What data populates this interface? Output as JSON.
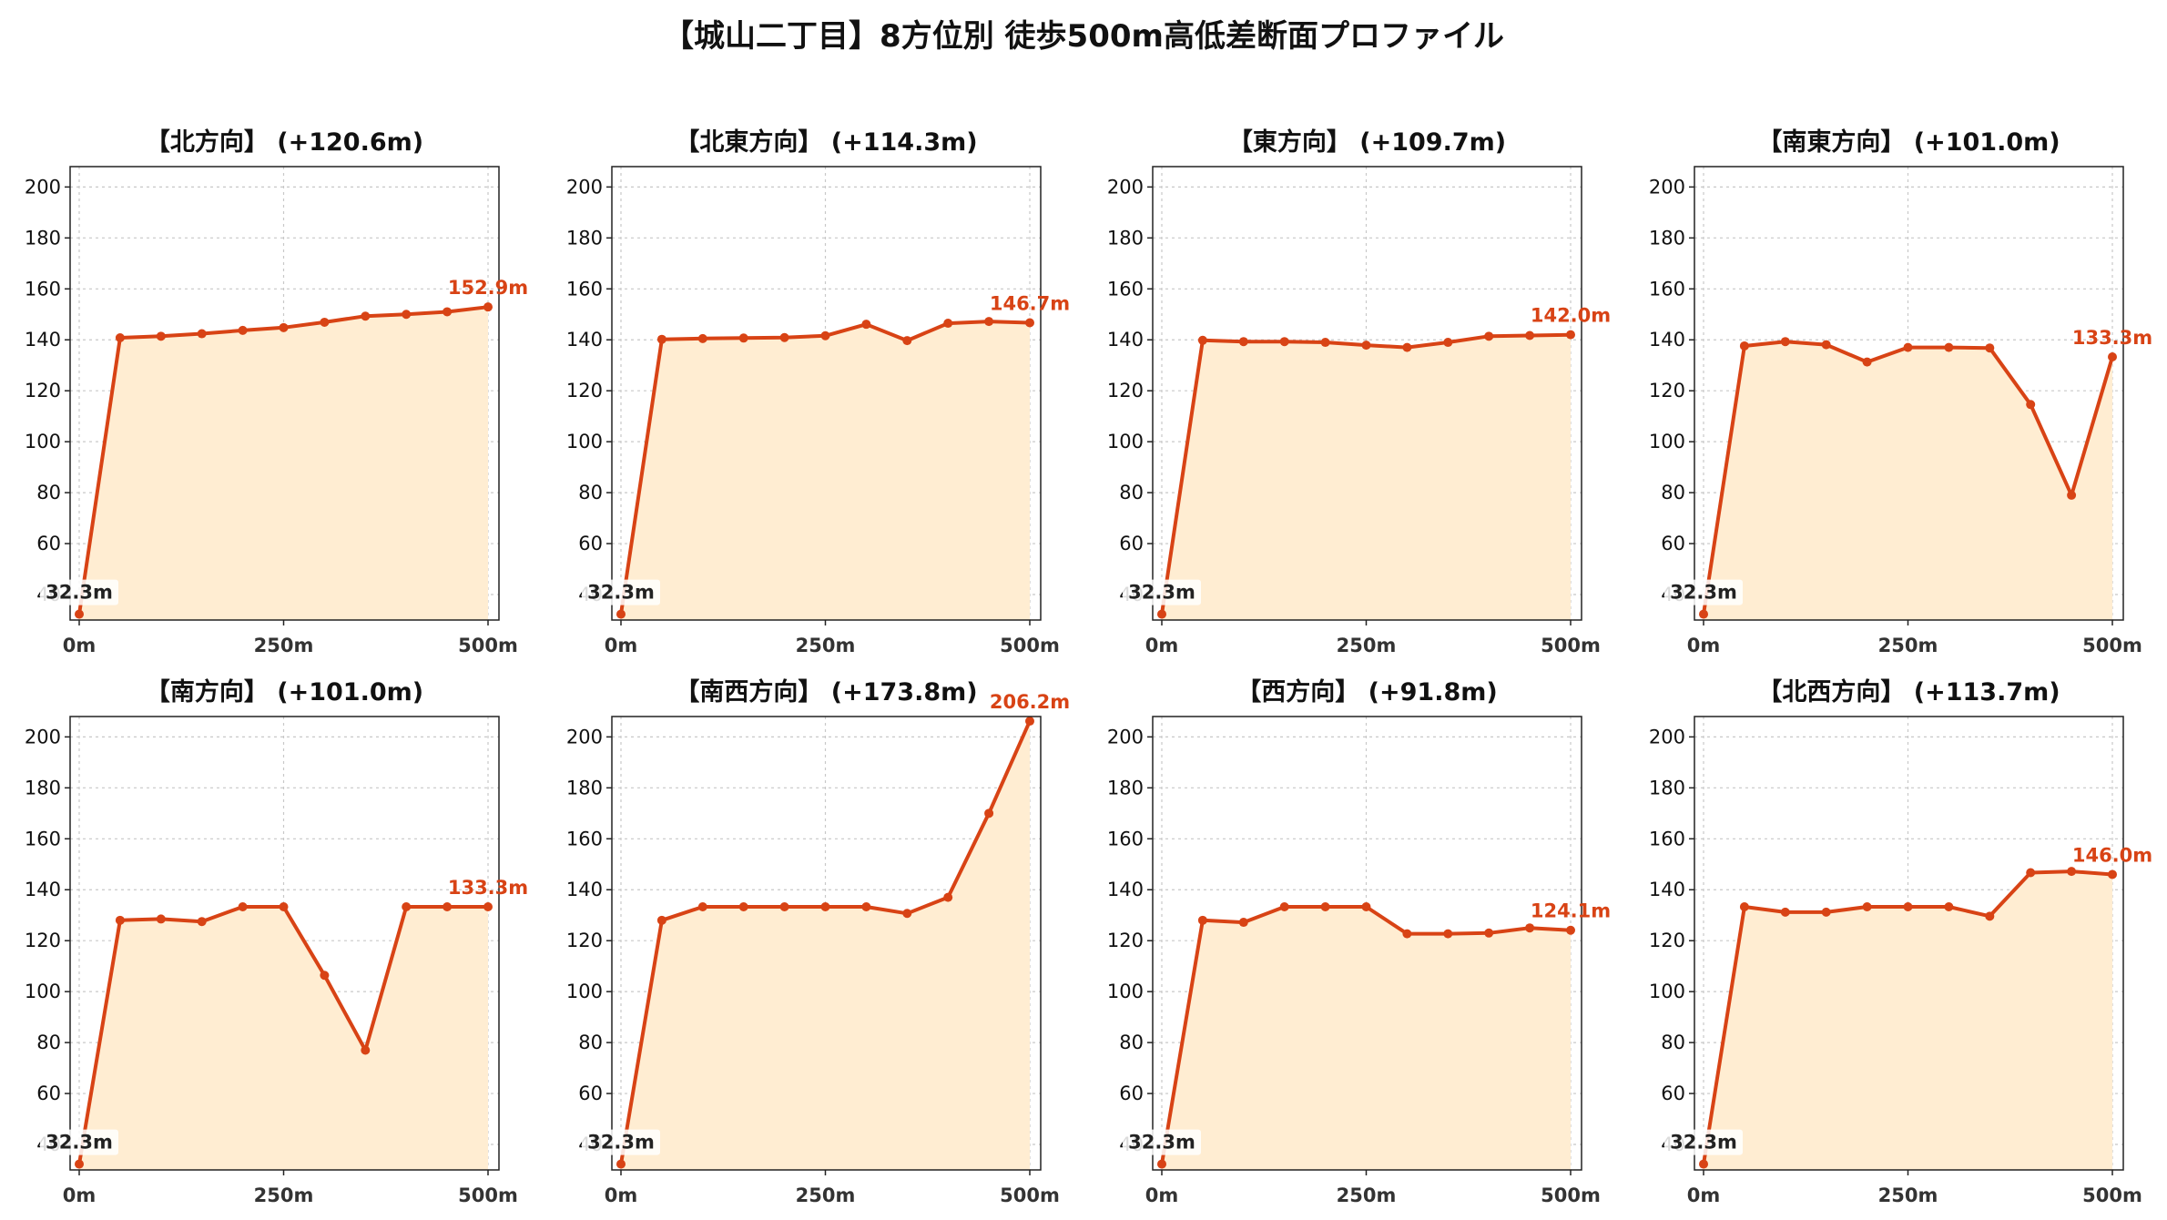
{
  "title": "【城山二丁目】8方位別 徒歩500m高低差断面プロファイル",
  "colors": {
    "line": "#d84315",
    "fill": "#ffedd2",
    "grid": "#c8c8c8"
  },
  "chart_data": [
    {
      "type": "area",
      "title": "【北方向】 (+120.6m)",
      "x": [
        0,
        50,
        100,
        150,
        200,
        250,
        300,
        350,
        400,
        450,
        500
      ],
      "values": [
        32.3,
        140.8,
        141.4,
        142.4,
        143.7,
        144.8,
        146.9,
        149.3,
        150.0,
        151.0,
        152.9
      ],
      "start_label": "32.3m",
      "end_label": "152.9m",
      "ylim": [
        30,
        208
      ],
      "yticks": [
        "40",
        "60",
        "80",
        "100",
        "120",
        "140",
        "160",
        "180",
        "200"
      ],
      "xticks": [
        "0m",
        "250m",
        "500m"
      ],
      "grid": true
    },
    {
      "type": "area",
      "title": "【北東方向】 (+114.3m)",
      "x": [
        0,
        50,
        100,
        150,
        200,
        250,
        300,
        350,
        400,
        450,
        500
      ],
      "values": [
        32.3,
        140.2,
        140.5,
        140.7,
        140.9,
        141.6,
        146.1,
        139.7,
        146.5,
        147.2,
        146.7
      ],
      "start_label": "32.3m",
      "end_label": "146.7m",
      "ylim": [
        30,
        208
      ],
      "yticks": [
        "40",
        "60",
        "80",
        "100",
        "120",
        "140",
        "160",
        "180",
        "200"
      ],
      "xticks": [
        "0m",
        "250m",
        "500m"
      ],
      "grid": true
    },
    {
      "type": "area",
      "title": "【東方向】 (+109.7m)",
      "x": [
        0,
        50,
        100,
        150,
        200,
        250,
        300,
        350,
        400,
        450,
        500
      ],
      "values": [
        32.3,
        139.8,
        139.3,
        139.3,
        139.0,
        137.9,
        137.0,
        139.0,
        141.4,
        141.7,
        142.0
      ],
      "start_label": "32.3m",
      "end_label": "142.0m",
      "ylim": [
        30,
        208
      ],
      "yticks": [
        "40",
        "60",
        "80",
        "100",
        "120",
        "140",
        "160",
        "180",
        "200"
      ],
      "xticks": [
        "0m",
        "250m",
        "500m"
      ],
      "grid": true
    },
    {
      "type": "area",
      "title": "【南東方向】 (+101.0m)",
      "x": [
        0,
        50,
        100,
        150,
        200,
        250,
        300,
        350,
        400,
        450,
        500
      ],
      "values": [
        32.3,
        137.6,
        139.3,
        138.1,
        131.3,
        137.0,
        137.0,
        136.8,
        114.6,
        79.0,
        133.3
      ],
      "start_label": "32.3m",
      "end_label": "133.3m",
      "ylim": [
        30,
        208
      ],
      "yticks": [
        "40",
        "60",
        "80",
        "100",
        "120",
        "140",
        "160",
        "180",
        "200"
      ],
      "xticks": [
        "0m",
        "250m",
        "500m"
      ],
      "grid": true
    },
    {
      "type": "area",
      "title": "【南方向】 (+101.0m)",
      "x": [
        0,
        50,
        100,
        150,
        200,
        250,
        300,
        350,
        400,
        450,
        500
      ],
      "values": [
        32.3,
        128.0,
        128.5,
        127.5,
        133.3,
        133.3,
        106.4,
        77.0,
        133.3,
        133.3,
        133.3
      ],
      "start_label": "32.3m",
      "end_label": "133.3m",
      "ylim": [
        30,
        208
      ],
      "yticks": [
        "40",
        "60",
        "80",
        "100",
        "120",
        "140",
        "160",
        "180",
        "200"
      ],
      "xticks": [
        "0m",
        "250m",
        "500m"
      ],
      "grid": true
    },
    {
      "type": "area",
      "title": "【南西方向】 (+173.8m)",
      "x": [
        0,
        50,
        100,
        150,
        200,
        250,
        300,
        350,
        400,
        450,
        500
      ],
      "values": [
        32.3,
        128.0,
        133.3,
        133.3,
        133.3,
        133.3,
        133.3,
        130.7,
        137.0,
        170.0,
        206.2
      ],
      "start_label": "32.3m",
      "end_label": "206.2m",
      "ylim": [
        30,
        208
      ],
      "yticks": [
        "40",
        "60",
        "80",
        "100",
        "120",
        "140",
        "160",
        "180",
        "200"
      ],
      "xticks": [
        "0m",
        "250m",
        "500m"
      ],
      "grid": true
    },
    {
      "type": "area",
      "title": "【西方向】 (+91.8m)",
      "x": [
        0,
        50,
        100,
        150,
        200,
        250,
        300,
        350,
        400,
        450,
        500
      ],
      "values": [
        32.3,
        128.0,
        127.2,
        133.3,
        133.3,
        133.3,
        122.7,
        122.7,
        123.0,
        125.0,
        124.1
      ],
      "start_label": "32.3m",
      "end_label": "124.1m",
      "ylim": [
        30,
        208
      ],
      "yticks": [
        "40",
        "60",
        "80",
        "100",
        "120",
        "140",
        "160",
        "180",
        "200"
      ],
      "xticks": [
        "0m",
        "250m",
        "500m"
      ],
      "grid": true
    },
    {
      "type": "area",
      "title": "【北西方向】 (+113.7m)",
      "x": [
        0,
        50,
        100,
        150,
        200,
        250,
        300,
        350,
        400,
        450,
        500
      ],
      "values": [
        32.3,
        133.3,
        131.2,
        131.2,
        133.3,
        133.3,
        133.3,
        129.6,
        146.7,
        147.2,
        146.0
      ],
      "start_label": "32.3m",
      "end_label": "146.0m",
      "ylim": [
        30,
        208
      ],
      "yticks": [
        "40",
        "60",
        "80",
        "100",
        "120",
        "140",
        "160",
        "180",
        "200"
      ],
      "xticks": [
        "0m",
        "250m",
        "500m"
      ],
      "grid": true
    }
  ]
}
